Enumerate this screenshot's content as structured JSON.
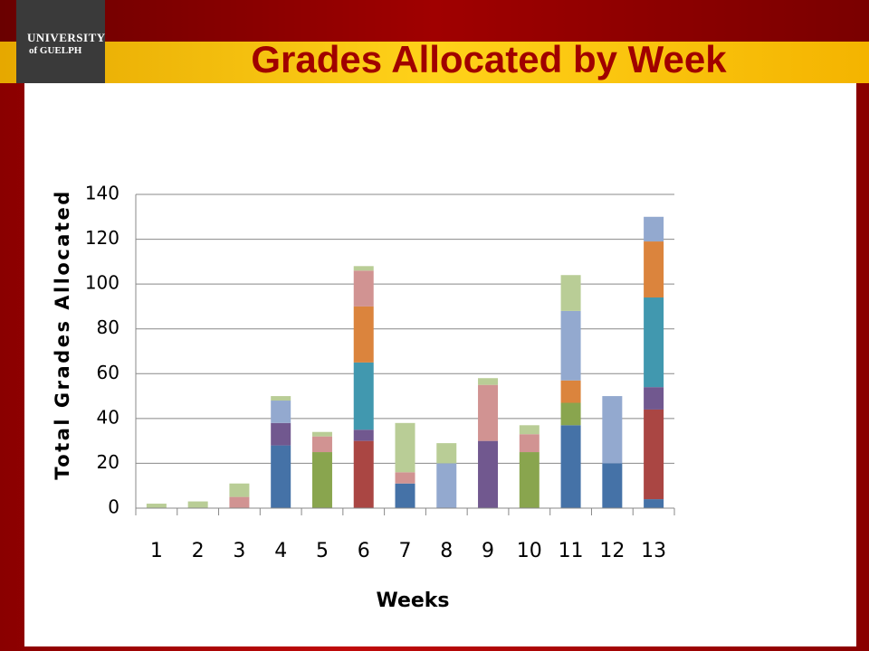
{
  "logo": {
    "line1": "UNIVERSITY",
    "line2": "of GUELPH"
  },
  "chart_data": {
    "type": "stacked_bar",
    "title": "Grades Allocated by Week",
    "x_label": "Weeks",
    "y_label": "Total Grades Allocated",
    "categories": [
      "1",
      "2",
      "3",
      "4",
      "5",
      "6",
      "7",
      "8",
      "9",
      "10",
      "11",
      "12",
      "13"
    ],
    "ylim": [
      0,
      140
    ],
    "yticks": [
      0,
      20,
      40,
      60,
      80,
      100,
      120,
      140
    ],
    "grid": true,
    "series": [
      {
        "color": "#4572a7",
        "values": [
          null,
          null,
          null,
          28,
          null,
          null,
          11,
          null,
          null,
          null,
          37,
          20,
          4
        ]
      },
      {
        "color": "#aa4643",
        "values": [
          null,
          null,
          null,
          null,
          null,
          30,
          null,
          null,
          null,
          null,
          null,
          null,
          40
        ]
      },
      {
        "color": "#89a54e",
        "values": [
          null,
          null,
          null,
          null,
          25,
          null,
          null,
          null,
          null,
          25,
          10,
          null,
          null
        ]
      },
      {
        "color": "#71588f",
        "values": [
          null,
          null,
          null,
          10,
          null,
          5,
          null,
          null,
          30,
          null,
          null,
          null,
          10
        ]
      },
      {
        "color": "#4198af",
        "values": [
          null,
          null,
          null,
          null,
          null,
          30,
          null,
          null,
          null,
          null,
          null,
          null,
          40
        ]
      },
      {
        "color": "#db843d",
        "values": [
          null,
          null,
          null,
          null,
          null,
          25,
          null,
          null,
          null,
          null,
          10,
          null,
          25
        ]
      },
      {
        "color": "#93a9cf",
        "values": [
          null,
          null,
          null,
          10,
          null,
          null,
          null,
          20,
          null,
          null,
          31,
          30,
          11
        ]
      },
      {
        "color": "#d19392",
        "values": [
          null,
          null,
          5,
          null,
          7,
          16,
          5,
          null,
          25,
          8,
          null,
          null,
          null
        ]
      },
      {
        "color": "#b9cd96",
        "values": [
          2,
          3,
          6,
          2,
          2,
          2,
          22,
          9,
          3,
          4,
          16,
          null,
          null
        ]
      }
    ]
  }
}
